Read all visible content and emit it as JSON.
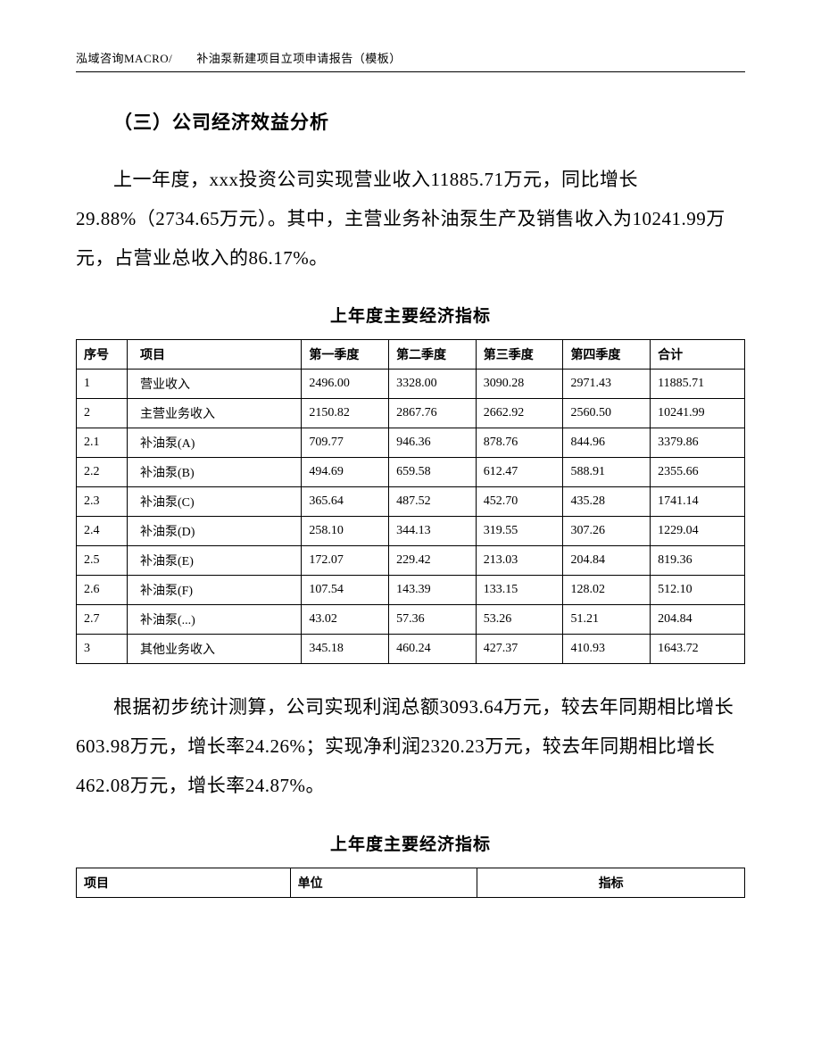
{
  "header": "泓域咨询MACRO/　　补油泵新建项目立项申请报告（模板）",
  "section_title": "（三）公司经济效益分析",
  "para1": "上一年度，xxx投资公司实现营业收入11885.71万元，同比增长29.88%（2734.65万元）。其中，主营业务补油泵生产及销售收入为10241.99万元，占营业总收入的86.17%。",
  "table1": {
    "title": "上年度主要经济指标",
    "headers": [
      "序号",
      "项目",
      "第一季度",
      "第二季度",
      "第三季度",
      "第四季度",
      "合计"
    ],
    "rows": [
      [
        "1",
        "营业收入",
        "2496.00",
        "3328.00",
        "3090.28",
        "2971.43",
        "11885.71"
      ],
      [
        "2",
        "主营业务收入",
        "2150.82",
        "2867.76",
        "2662.92",
        "2560.50",
        "10241.99"
      ],
      [
        "2.1",
        "补油泵(A)",
        "709.77",
        "946.36",
        "878.76",
        "844.96",
        "3379.86"
      ],
      [
        "2.2",
        "补油泵(B)",
        "494.69",
        "659.58",
        "612.47",
        "588.91",
        "2355.66"
      ],
      [
        "2.3",
        "补油泵(C)",
        "365.64",
        "487.52",
        "452.70",
        "435.28",
        "1741.14"
      ],
      [
        "2.4",
        "补油泵(D)",
        "258.10",
        "344.13",
        "319.55",
        "307.26",
        "1229.04"
      ],
      [
        "2.5",
        "补油泵(E)",
        "172.07",
        "229.42",
        "213.03",
        "204.84",
        "819.36"
      ],
      [
        "2.6",
        "补油泵(F)",
        "107.54",
        "143.39",
        "133.15",
        "128.02",
        "512.10"
      ],
      [
        "2.7",
        "补油泵(...)",
        "43.02",
        "57.36",
        "53.26",
        "51.21",
        "204.84"
      ],
      [
        "3",
        "其他业务收入",
        "345.18",
        "460.24",
        "427.37",
        "410.93",
        "1643.72"
      ]
    ]
  },
  "para2": "根据初步统计测算，公司实现利润总额3093.64万元，较去年同期相比增长603.98万元，增长率24.26%；实现净利润2320.23万元，较去年同期相比增长462.08万元，增长率24.87%。",
  "table2": {
    "title": "上年度主要经济指标",
    "headers": [
      "项目",
      "单位",
      "指标"
    ]
  }
}
